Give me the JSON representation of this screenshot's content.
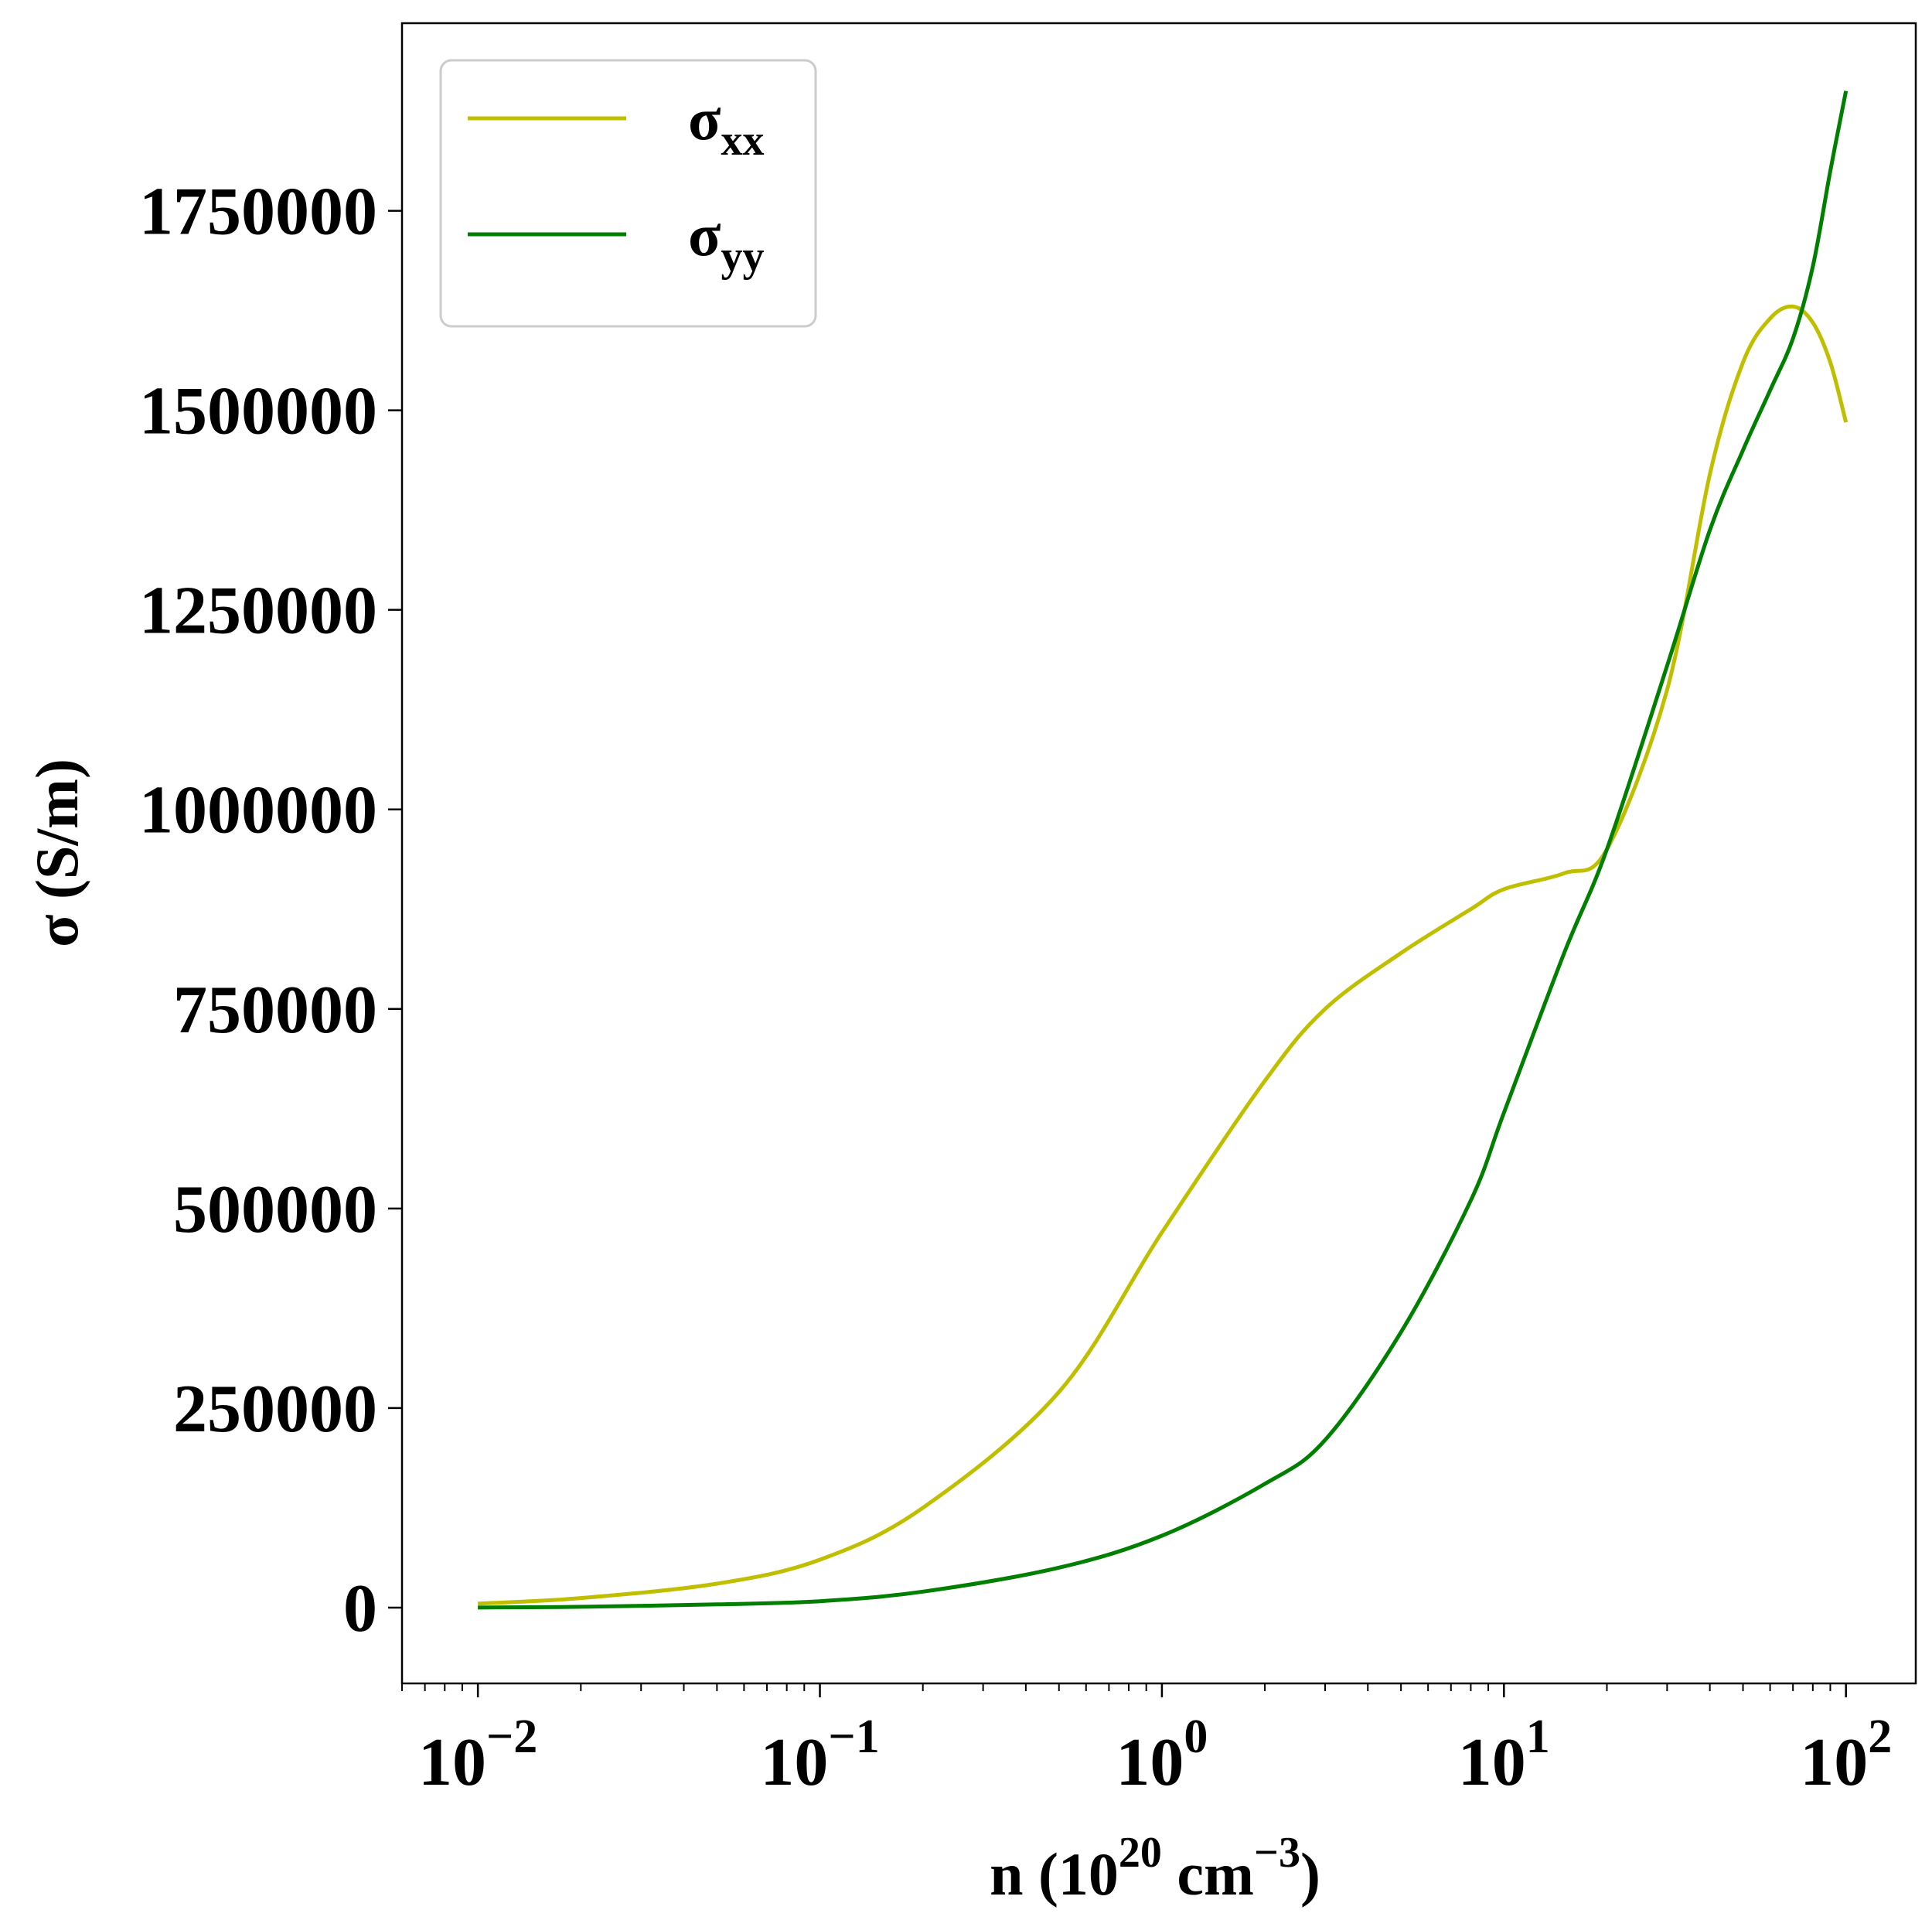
{
  "chart_data": {
    "type": "line",
    "xscale": "log",
    "xlim": [
      0.006,
      160
    ],
    "ylim": [
      -95000,
      1985000
    ],
    "grid": false,
    "legend_position": "top-left",
    "xlabel": {
      "base": "n (10",
      "sup1": "20",
      "mid": " cm",
      "sup2": "−3",
      "end": ")"
    },
    "ylabel": "σ (S/m)",
    "x_ticks": [
      {
        "value": 0.01,
        "base": "10",
        "exp": "−2"
      },
      {
        "value": 0.1,
        "base": "10",
        "exp": "−1"
      },
      {
        "value": 1,
        "base": "10",
        "exp": "0"
      },
      {
        "value": 10,
        "base": "10",
        "exp": "1"
      },
      {
        "value": 100,
        "base": "10",
        "exp": "2"
      }
    ],
    "y_ticks": [
      {
        "value": 0,
        "label": "0"
      },
      {
        "value": 250000,
        "label": "250000"
      },
      {
        "value": 500000,
        "label": "500000"
      },
      {
        "value": 750000,
        "label": "750000"
      },
      {
        "value": 1000000,
        "label": "1000000"
      },
      {
        "value": 1250000,
        "label": "1250000"
      },
      {
        "value": 1500000,
        "label": "1500000"
      },
      {
        "value": 1750000,
        "label": "1750000"
      }
    ],
    "series": [
      {
        "name": "σxx",
        "legend_main": "σ",
        "legend_sub": "xx",
        "color": "#bfbf00",
        "x": [
          0.01,
          0.02,
          0.05,
          0.1,
          0.2,
          0.5,
          1,
          2,
          3,
          5,
          8,
          10,
          15,
          20,
          30,
          40,
          50,
          60,
          70,
          80,
          90,
          100
        ],
        "y": [
          5000,
          12000,
          30000,
          60000,
          125000,
          270000,
          470000,
          660000,
          750000,
          820000,
          875000,
          900000,
          920000,
          950000,
          1150000,
          1420000,
          1560000,
          1615000,
          1630000,
          1610000,
          1560000,
          1485000
        ]
      },
      {
        "name": "σyy",
        "legend_main": "σ",
        "legend_sub": "yy",
        "color": "#007f00",
        "x": [
          0.01,
          0.02,
          0.05,
          0.1,
          0.2,
          0.5,
          1,
          2,
          3,
          5,
          8,
          10,
          15,
          20,
          30,
          40,
          50,
          60,
          70,
          80,
          90,
          100
        ],
        "y": [
          0,
          1000,
          4000,
          8000,
          20000,
          50000,
          90000,
          155000,
          210000,
          345000,
          510000,
          620000,
          820000,
          950000,
          1180000,
          1350000,
          1450000,
          1525000,
          1590000,
          1680000,
          1800000,
          1900000
        ]
      }
    ]
  }
}
